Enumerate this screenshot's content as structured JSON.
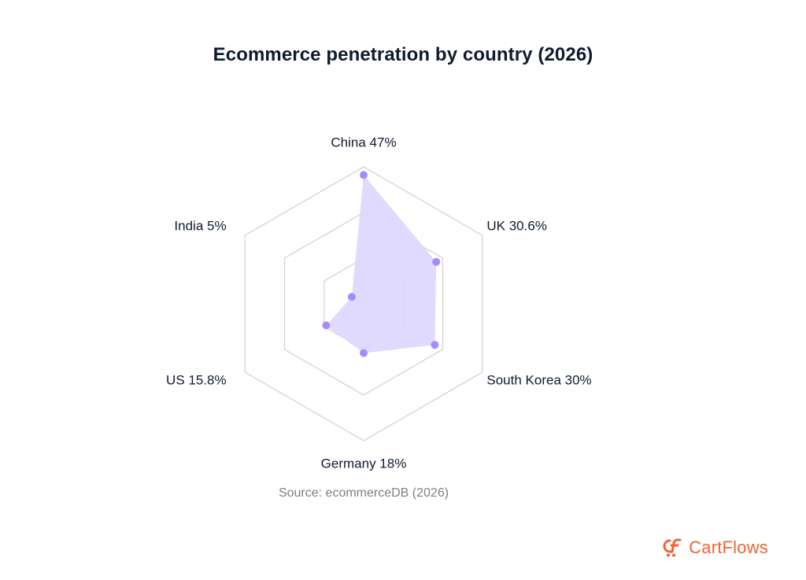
{
  "chart_data": {
    "type": "radar",
    "title": "Ecommerce penetration by country (2026)",
    "source": "Source: ecommerceDB (2026)",
    "unit": "%",
    "scale_max": 50,
    "rings": 3,
    "categories": [
      "China",
      "UK",
      "South Korea",
      "Germany",
      "US",
      "India"
    ],
    "labels": [
      "China 47%",
      "UK 30.6%",
      "South Korea 30%",
      "Germany 18%",
      "US 15.8%",
      "India 5%"
    ],
    "values": [
      47,
      30.6,
      30,
      18,
      15.8,
      5
    ],
    "colors": {
      "fill": "#ddd6fe",
      "point": "#a78bfa",
      "grid": "#d4d4d8",
      "label": "#0f1b2d"
    }
  },
  "brand": {
    "name": "CartFlows",
    "icon": "cartflows-logo-icon",
    "color": "#f06335"
  }
}
